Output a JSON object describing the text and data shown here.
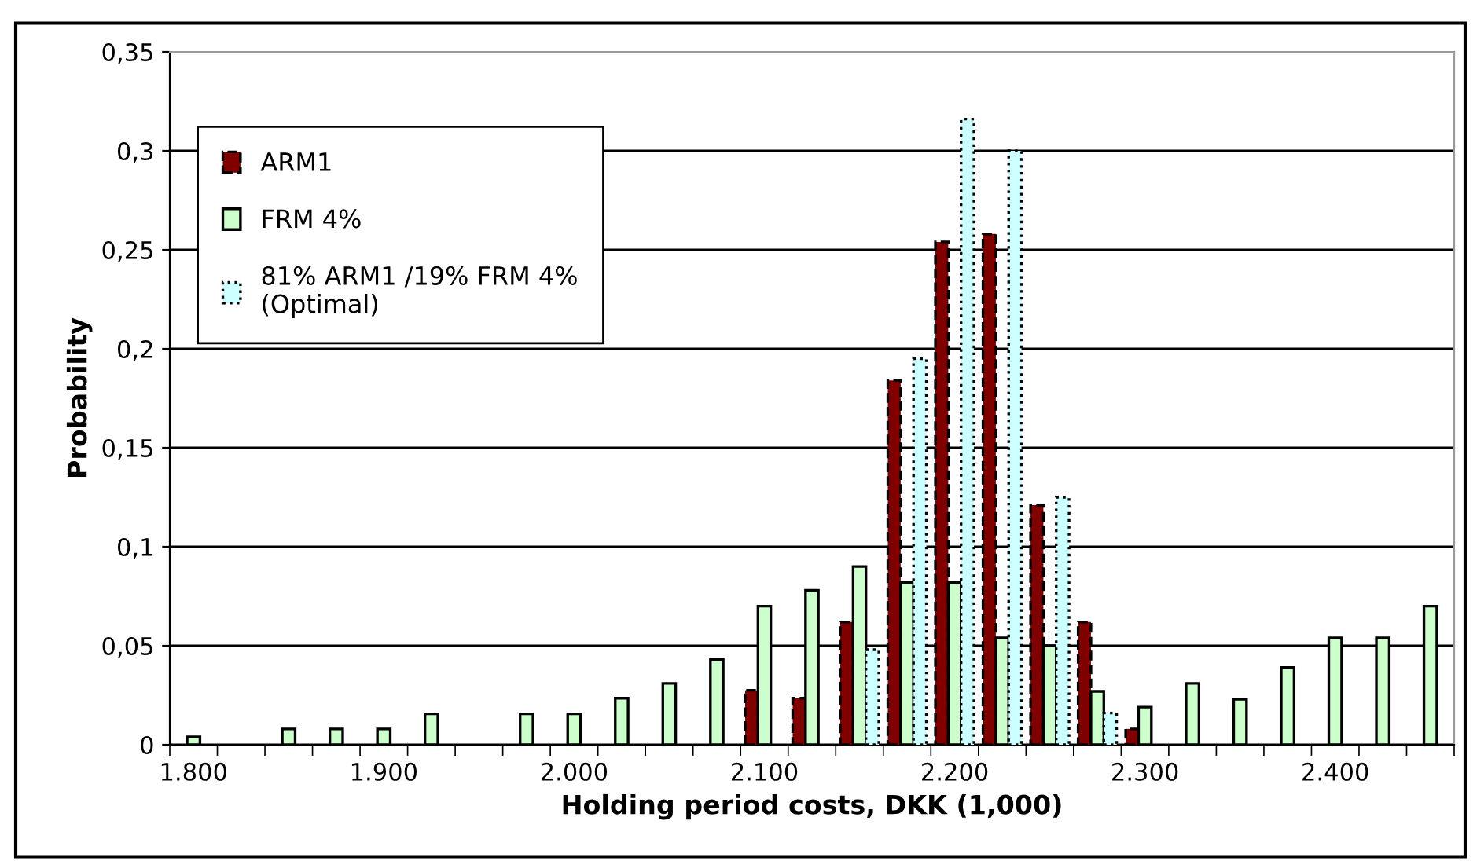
{
  "chart_data": {
    "type": "bar",
    "xlabel": "Holding period costs, DKK (1,000)",
    "ylabel": "Probability",
    "categories": [
      "1.800",
      null,
      null,
      null,
      "1.900",
      null,
      null,
      null,
      "2.000",
      null,
      null,
      null,
      "2.100",
      null,
      null,
      null,
      "2.200",
      null,
      null,
      null,
      "2.300",
      null,
      null,
      null,
      "2.400",
      null,
      null
    ],
    "series": [
      {
        "name": "ARM1",
        "color": "#800000",
        "line_style": "dashed",
        "values": [
          null,
          null,
          null,
          null,
          null,
          null,
          null,
          null,
          null,
          null,
          null,
          null,
          0.0275,
          0.0235,
          0.062,
          0.184,
          0.254,
          0.258,
          0.121,
          0.062,
          0.008,
          null,
          null,
          null,
          null,
          null,
          null
        ]
      },
      {
        "name": "FRM 4%",
        "color": "#ccffcc",
        "line_style": "solid",
        "values": [
          0.004,
          null,
          0.008,
          0.008,
          0.008,
          0.0156,
          null,
          0.0156,
          0.0156,
          0.0235,
          0.031,
          0.043,
          0.07,
          0.078,
          0.09,
          0.082,
          0.082,
          0.054,
          0.05,
          0.027,
          0.019,
          0.031,
          0.023,
          0.039,
          0.054,
          0.054,
          0.07
        ]
      },
      {
        "name": "81% ARM1 /19% FRM 4%\n(Optimal)",
        "color": "#ccffff",
        "line_style": "dotted",
        "values": [
          null,
          null,
          null,
          null,
          null,
          null,
          null,
          null,
          null,
          null,
          null,
          null,
          null,
          null,
          0.048,
          0.195,
          0.316,
          0.3,
          0.125,
          0.016,
          null,
          null,
          null,
          null,
          null,
          null,
          null
        ]
      }
    ],
    "ylim": [
      0,
      0.35
    ],
    "yticks": [
      {
        "value": 0,
        "label": "0"
      },
      {
        "value": 0.05,
        "label": "0,05"
      },
      {
        "value": 0.1,
        "label": "0,1"
      },
      {
        "value": 0.15,
        "label": "0,15"
      },
      {
        "value": 0.2,
        "label": "0,2"
      },
      {
        "value": 0.25,
        "label": "0,25"
      },
      {
        "value": 0.3,
        "label": "0,3"
      },
      {
        "value": 0.35,
        "label": "0,35"
      }
    ],
    "grid": "y",
    "legend": "top left"
  }
}
